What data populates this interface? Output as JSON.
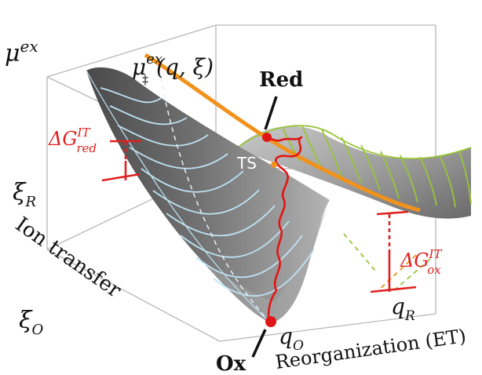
{
  "labels": {
    "mu_ex": "μ",
    "mu_ex_sup": "ex",
    "mu_ts": "μ",
    "mu_ts_sup": "ex",
    "mu_ts_sub": "‡",
    "mu_ts_args": "(q, ξ)",
    "red": "Red",
    "ox": "Ox",
    "ts": "TS",
    "dg_red_main": "ΔG",
    "dg_red_sup": "IT",
    "dg_red_sub": "red",
    "dg_ox_main": "ΔG",
    "dg_ox_sup": "IT",
    "dg_ox_sub": "ox",
    "xi_r": "ξ",
    "xi_r_sub": "R",
    "xi_o": "ξ",
    "xi_o_sub": "O",
    "q_r": "q",
    "q_r_sub": "R",
    "q_o": "q",
    "q_o_sub": "O",
    "ion_transfer": "Ion transfer",
    "reorganization": "Reorganization (ET)"
  },
  "colors": {
    "box": "#b7b7b7",
    "surface_dark": "#555555",
    "surface_mid": "#8e8e8e",
    "surface_light": "#c8c8c8",
    "contour_blue": "#bfe3f4",
    "contour_green": "#9ac43a",
    "saddle_orange": "#f0921c",
    "path_red": "#e01515",
    "annotation_red": "#e02020",
    "text": "#111111"
  }
}
